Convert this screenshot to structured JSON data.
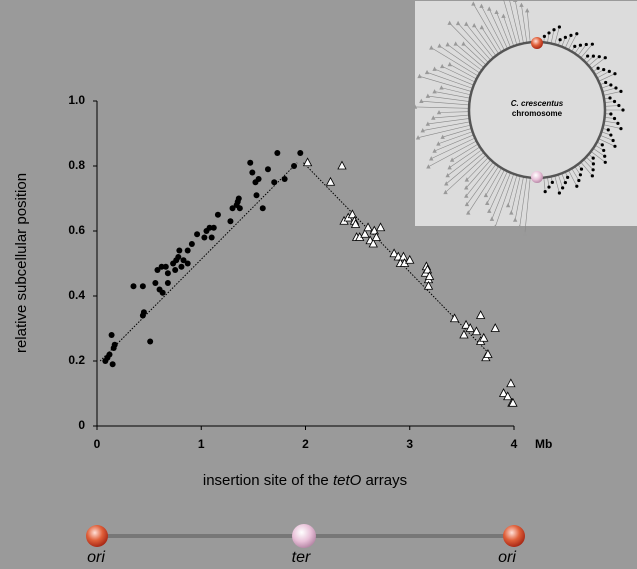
{
  "chart_data": {
    "type": "scatter",
    "y_label": "relative subcellular position",
    "x_label_parts": [
      "insertion site of the ",
      "tetO",
      " arrays"
    ],
    "x_unit": "Mb",
    "xlim": [
      0,
      4
    ],
    "xticks": [
      0,
      1,
      2,
      3,
      4
    ],
    "ylim": [
      0,
      1
    ],
    "yticks": [
      0,
      0.2,
      0.4,
      0.6,
      0.8,
      {
        "value": 1,
        "label": "1.0"
      }
    ],
    "series": [
      {
        "marker": "circle",
        "color": "#000000",
        "x": [
          0.08,
          0.1,
          0.12,
          0.14,
          0.15,
          0.16,
          0.17,
          0.35,
          0.44,
          0.44,
          0.45,
          0.51,
          0.56,
          0.58,
          0.6,
          0.62,
          0.63,
          0.66,
          0.68,
          0.68,
          0.73,
          0.75,
          0.76,
          0.78,
          0.79,
          0.81,
          0.83,
          0.87,
          0.87,
          0.91,
          0.96,
          1.03,
          1.05,
          1.08,
          1.1,
          1.12,
          1.16,
          1.28,
          1.3,
          1.34,
          1.35,
          1.36,
          1.37,
          1.47,
          1.49,
          1.52,
          1.53,
          1.55,
          1.59,
          1.64,
          1.7,
          1.73,
          1.8,
          1.89,
          1.95
        ],
        "values": [
          0.2,
          0.21,
          0.22,
          0.28,
          0.19,
          0.24,
          0.25,
          0.43,
          0.34,
          0.43,
          0.35,
          0.26,
          0.44,
          0.48,
          0.42,
          0.49,
          0.41,
          0.49,
          0.47,
          0.44,
          0.5,
          0.48,
          0.51,
          0.52,
          0.54,
          0.49,
          0.51,
          0.54,
          0.5,
          0.56,
          0.59,
          0.58,
          0.6,
          0.61,
          0.58,
          0.61,
          0.65,
          0.63,
          0.67,
          0.68,
          0.69,
          0.7,
          0.67,
          0.81,
          0.78,
          0.75,
          0.71,
          0.76,
          0.67,
          0.79,
          0.75,
          0.84,
          0.76,
          0.8,
          0.84
        ]
      },
      {
        "marker": "triangle",
        "color": "#ffffff",
        "x": [
          2.02,
          2.24,
          2.35,
          2.37,
          2.41,
          2.45,
          2.47,
          2.48,
          2.49,
          2.52,
          2.57,
          2.6,
          2.62,
          2.65,
          2.66,
          2.68,
          2.72,
          2.85,
          2.89,
          2.91,
          2.94,
          2.95,
          3.0,
          3.15,
          3.16,
          3.17,
          3.18,
          3.18,
          3.19,
          3.43,
          3.52,
          3.54,
          3.58,
          3.64,
          3.68,
          3.68,
          3.71,
          3.73,
          3.75,
          3.82,
          3.9,
          3.94,
          3.97,
          3.98,
          3.99
        ],
        "values": [
          0.81,
          0.75,
          0.8,
          0.63,
          0.64,
          0.65,
          0.63,
          0.62,
          0.58,
          0.58,
          0.59,
          0.61,
          0.57,
          0.56,
          0.6,
          0.58,
          0.61,
          0.53,
          0.52,
          0.5,
          0.52,
          0.5,
          0.51,
          0.47,
          0.49,
          0.48,
          0.45,
          0.43,
          0.46,
          0.33,
          0.28,
          0.31,
          0.3,
          0.29,
          0.34,
          0.26,
          0.27,
          0.21,
          0.22,
          0.3,
          0.1,
          0.09,
          0.13,
          0.07,
          0.07
        ]
      }
    ],
    "fits": [
      {
        "x": [
          0.03,
          1.92
        ],
        "values": [
          0.2,
          0.81
        ]
      },
      {
        "x": [
          1.98,
          3.77
        ],
        "values": [
          0.81,
          0.22
        ]
      }
    ]
  },
  "inset": {
    "label_italic": "C. crescentus",
    "label": "chromosome"
  },
  "map": {
    "labels": [
      "ori",
      "ter",
      "ori"
    ]
  }
}
